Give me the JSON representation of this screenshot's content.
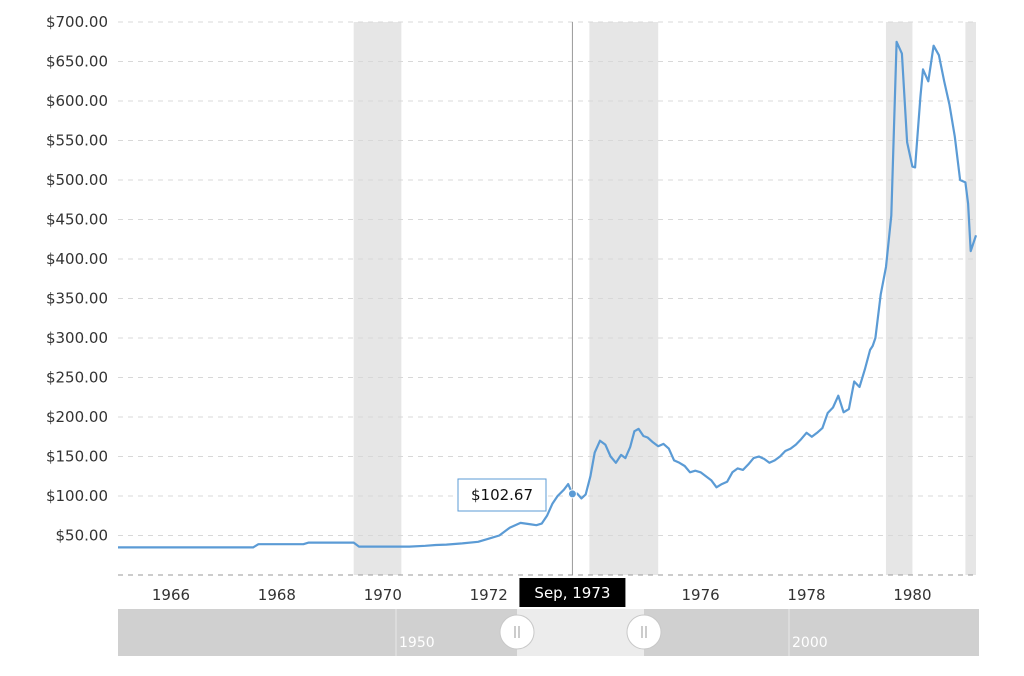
{
  "colors": {
    "series": "#5b9bd5",
    "recession": "#e6e6e6",
    "crosshair": "#999999",
    "crosshair_label_bg": "#000000",
    "navigator_bg": "#d0d0d0",
    "navigator_selected": "#ececec"
  },
  "chart_data": {
    "type": "line",
    "title": "",
    "xlabel": "",
    "ylabel": "",
    "ylim": [
      0,
      700
    ],
    "xlim": [
      1965.0,
      1981.2
    ],
    "y_ticks": [
      50,
      100,
      150,
      200,
      250,
      300,
      350,
      400,
      450,
      500,
      550,
      600,
      650,
      700
    ],
    "y_tick_labels": [
      "$50.00",
      "$100.00",
      "$150.00",
      "$200.00",
      "$250.00",
      "$300.00",
      "$350.00",
      "$400.00",
      "$450.00",
      "$500.00",
      "$550.00",
      "$600.00",
      "$650.00",
      "$700.00"
    ],
    "x_tick_labels": [
      "1966",
      "1968",
      "1970",
      "1972",
      "1974",
      "1976",
      "1978",
      "1980"
    ],
    "x_tick_values": [
      1966,
      1968,
      1970,
      1972,
      1974,
      1976,
      1978,
      1980
    ],
    "grid": true,
    "recession_bands": [
      [
        1969.45,
        1970.35
      ],
      [
        1973.9,
        1975.2
      ],
      [
        1979.5,
        1980.0
      ],
      [
        1981.0,
        1981.2
      ]
    ],
    "series": [
      {
        "x": [
          1965.0,
          1966.0,
          1967.0,
          1967.55,
          1967.65,
          1968.0,
          1968.5,
          1968.6,
          1969.0,
          1969.45,
          1969.55,
          1970.0,
          1970.5,
          1970.8,
          1971.0,
          1971.2,
          1971.5,
          1971.8,
          1972.0,
          1972.2,
          1972.4,
          1972.6,
          1972.8,
          1972.9,
          1973.0,
          1973.1,
          1973.2,
          1973.3,
          1973.42,
          1973.5,
          1973.58,
          1973.67,
          1973.75,
          1973.83,
          1973.92,
          1974.0,
          1974.1,
          1974.2,
          1974.3,
          1974.4,
          1974.5,
          1974.58,
          1974.67,
          1974.75,
          1974.83,
          1974.92,
          1975.0,
          1975.1,
          1975.2,
          1975.3,
          1975.4,
          1975.5,
          1975.6,
          1975.7,
          1975.8,
          1975.9,
          1976.0,
          1976.1,
          1976.2,
          1976.3,
          1976.4,
          1976.5,
          1976.6,
          1976.7,
          1976.8,
          1976.9,
          1977.0,
          1977.1,
          1977.2,
          1977.3,
          1977.4,
          1977.5,
          1977.6,
          1977.7,
          1977.8,
          1977.9,
          1978.0,
          1978.1,
          1978.2,
          1978.3,
          1978.4,
          1978.5,
          1978.6,
          1978.7,
          1978.8,
          1978.9,
          1979.0,
          1979.1,
          1979.2,
          1979.25,
          1979.3,
          1979.4,
          1979.5,
          1979.6,
          1979.7,
          1979.8,
          1979.9,
          1980.0,
          1980.05,
          1980.15,
          1980.2,
          1980.3,
          1980.4,
          1980.5,
          1980.6,
          1980.7,
          1980.8,
          1980.9,
          1981.0,
          1981.05,
          1981.1,
          1981.2
        ],
        "values": [
          35,
          35,
          35,
          35,
          39,
          39,
          39,
          41,
          41,
          41,
          36,
          36,
          36,
          37,
          38,
          38.5,
          40,
          42,
          46,
          50,
          60,
          66,
          64,
          63,
          65,
          75,
          90,
          100,
          108,
          115,
          102.67,
          103,
          97,
          102,
          125,
          155,
          170,
          165,
          150,
          142,
          152,
          148,
          162,
          182,
          185,
          176,
          174,
          168,
          163,
          166,
          160,
          145,
          142,
          138,
          130,
          132,
          130,
          125,
          120,
          111,
          115,
          118,
          130,
          135,
          133,
          140,
          148,
          150,
          147,
          142,
          145,
          150,
          157,
          160,
          165,
          172,
          180,
          175,
          180,
          186,
          205,
          212,
          227,
          206,
          210,
          245,
          238,
          260,
          285,
          290,
          300,
          355,
          390,
          455,
          675,
          660,
          548,
          517,
          516,
          605,
          640,
          625,
          670,
          658,
          625,
          595,
          555,
          500,
          497,
          470,
          410,
          430
        ]
      }
    ],
    "tooltip": {
      "x": 1973.58,
      "value_label": "$102.67",
      "date_label": "Sep, 1973"
    },
    "navigator": {
      "year_labels": [
        "1950",
        "2000"
      ]
    }
  }
}
